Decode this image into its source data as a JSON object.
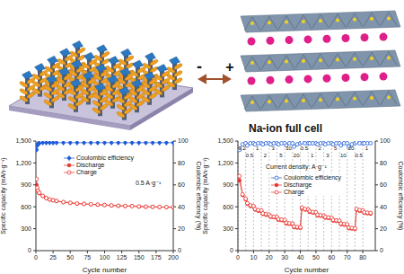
{
  "illustration": {
    "anode_sign": "-",
    "cathode_sign": "+",
    "caption": "Na-ion full cell"
  },
  "chart_data": [
    {
      "type": "line",
      "annotation": "0.5 A·g⁻¹",
      "xlabel": "Cycle number",
      "ylabel": "Specific capacity (mAh·g⁻¹)",
      "y2label": "Coulombic efficiency (%)",
      "x": [
        1,
        2,
        3,
        5,
        10,
        15,
        20,
        25,
        30,
        40,
        50,
        60,
        70,
        80,
        90,
        100,
        110,
        120,
        130,
        140,
        150,
        160,
        170,
        180,
        190,
        200
      ],
      "series": [
        {
          "name": "Coulombic efficiency",
          "color": "#1e5bd8",
          "marker": "diamond",
          "line_style": "solid",
          "axis": "y2",
          "values": [
            92,
            96,
            97.5,
            98,
            98.5,
            98.5,
            98.5,
            98.5,
            98.5,
            98.5,
            98.5,
            98.5,
            98.5,
            98.5,
            98.5,
            98.5,
            98.5,
            98.5,
            98.5,
            98.5,
            98.5,
            98.5,
            98.5,
            98.5,
            98.5,
            98.5
          ]
        },
        {
          "name": "Discharge",
          "color": "#e8302a",
          "marker": "circle",
          "line_style": "solid",
          "values": [
            900,
            850,
            815,
            785,
            748,
            718,
            698,
            688,
            678,
            663,
            653,
            643,
            638,
            633,
            628,
            623,
            618,
            613,
            610,
            608,
            603,
            600,
            598,
            596,
            594,
            593
          ]
        },
        {
          "name": "Charge",
          "color": "#e8302a",
          "marker": "circle_open",
          "line_style": "solid",
          "values": [
            980,
            860,
            820,
            790,
            750,
            720,
            700,
            690,
            680,
            665,
            655,
            645,
            640,
            635,
            630,
            625,
            620,
            615,
            612,
            610,
            605,
            602,
            600,
            598,
            596,
            595
          ]
        }
      ],
      "xlim": [
        0,
        200
      ],
      "xticks": [
        0,
        25,
        50,
        75,
        100,
        125,
        150,
        175,
        200
      ],
      "ylim": [
        0,
        1500
      ],
      "yticks": [
        0,
        300,
        600,
        900,
        {
          "value": 1200,
          "label": "1,200"
        },
        {
          "value": 1500,
          "label": "1,500"
        }
      ],
      "y2lim": [
        0,
        100
      ],
      "y2ticks": [
        0,
        20,
        40,
        60,
        80,
        100
      ]
    },
    {
      "type": "line",
      "annotation": "Current density: A·g⁻¹",
      "xlabel": "Cycle number",
      "ylabel": "Specific capacity (mAh·g⁻¹)",
      "y2label": "Coulombic efficiency (%)",
      "x": [
        1,
        3,
        5,
        6,
        8,
        10,
        11,
        13,
        15,
        16,
        18,
        20,
        21,
        23,
        25,
        26,
        28,
        30,
        31,
        33,
        35,
        36,
        38,
        40,
        41,
        43,
        45,
        46,
        48,
        50,
        51,
        53,
        55,
        56,
        58,
        60,
        61,
        63,
        65,
        66,
        68,
        70,
        71,
        73,
        75,
        76,
        78,
        80,
        81,
        83,
        85
      ],
      "series": [
        {
          "name": "Coulombic efficiency",
          "color": "#1e5bd8",
          "marker": "circle_open",
          "line_style": "solid",
          "axis": "y2",
          "values": [
            92,
            97,
            98,
            96,
            98,
            98,
            97,
            98,
            98,
            97,
            98,
            98,
            97,
            98,
            98,
            97,
            98,
            98,
            96,
            98,
            98,
            95,
            97,
            98,
            99,
            98,
            98,
            98,
            98,
            98,
            97,
            98,
            98,
            97,
            98,
            98,
            97,
            98,
            98,
            96,
            98,
            98,
            95,
            97,
            98,
            99,
            98,
            98,
            98,
            98,
            98
          ]
        },
        {
          "name": "Discharge",
          "color": "#e8302a",
          "marker": "circle",
          "line_style": "solid",
          "values": [
            960,
            760,
            700,
            640,
            610,
            600,
            560,
            545,
            540,
            500,
            490,
            485,
            460,
            455,
            450,
            420,
            415,
            410,
            370,
            365,
            360,
            320,
            315,
            310,
            580,
            560,
            555,
            530,
            520,
            515,
            480,
            475,
            470,
            450,
            445,
            440,
            410,
            405,
            400,
            360,
            355,
            350,
            305,
            300,
            295,
            560,
            545,
            540,
            515,
            510,
            505
          ]
        },
        {
          "name": "Charge",
          "color": "#e8302a",
          "marker": "circle_open",
          "line_style": "solid",
          "values": [
            1020,
            770,
            710,
            650,
            620,
            610,
            570,
            555,
            550,
            510,
            500,
            495,
            470,
            465,
            460,
            430,
            425,
            420,
            380,
            375,
            370,
            330,
            325,
            320,
            590,
            570,
            565,
            540,
            530,
            525,
            490,
            485,
            480,
            460,
            455,
            450,
            420,
            415,
            410,
            370,
            365,
            360,
            315,
            310,
            305,
            570,
            555,
            550,
            525,
            520,
            515
          ]
        }
      ],
      "segments": [
        {
          "start": 0,
          "end": 5,
          "label": "0.2"
        },
        {
          "start": 5,
          "end": 10,
          "label": "0.5"
        },
        {
          "start": 10,
          "end": 15,
          "label": "1"
        },
        {
          "start": 15,
          "end": 20,
          "label": "2"
        },
        {
          "start": 20,
          "end": 25,
          "label": "3"
        },
        {
          "start": 25,
          "end": 30,
          "label": "5"
        },
        {
          "start": 30,
          "end": 35,
          "label": "10"
        },
        {
          "start": 35,
          "end": 40,
          "label": "20"
        },
        {
          "start": 40,
          "end": 45,
          "label": "0.5"
        },
        {
          "start": 45,
          "end": 50,
          "label": "1"
        },
        {
          "start": 50,
          "end": 55,
          "label": "2"
        },
        {
          "start": 55,
          "end": 60,
          "label": "3"
        },
        {
          "start": 60,
          "end": 65,
          "label": "5"
        },
        {
          "start": 65,
          "end": 70,
          "label": "10"
        },
        {
          "start": 70,
          "end": 75,
          "label": "20"
        },
        {
          "start": 75,
          "end": 80,
          "label": "0.5"
        },
        {
          "start": 80,
          "end": 85,
          "label": "1"
        }
      ],
      "xlim": [
        0,
        88
      ],
      "xticks": [
        0,
        10,
        20,
        30,
        40,
        50,
        60,
        70,
        80
      ],
      "ylim": [
        0,
        1500
      ],
      "yticks": [
        0,
        300,
        600,
        900,
        {
          "value": 1200,
          "label": "1,200"
        },
        {
          "value": 1500,
          "label": "1,500"
        }
      ],
      "y2lim": [
        0,
        100
      ],
      "y2ticks": [
        0,
        20,
        40,
        60,
        80,
        100
      ]
    }
  ]
}
